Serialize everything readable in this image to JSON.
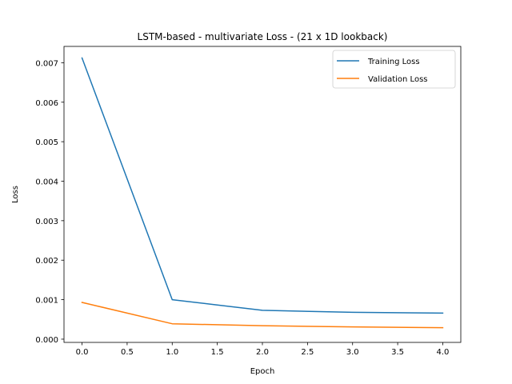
{
  "chart_data": {
    "type": "line",
    "title": "LSTM-based - multivariate Loss - (21 x 1D lookback)",
    "xlabel": "Epoch",
    "ylabel": "Loss",
    "x": [
      0,
      1,
      2,
      3,
      4
    ],
    "xlim": [
      -0.2,
      4.2
    ],
    "ylim": [
      -8.2e-05,
      0.007413
    ],
    "xticks": [
      0.0,
      0.5,
      1.0,
      1.5,
      2.0,
      2.5,
      3.0,
      3.5,
      4.0
    ],
    "xtick_labels": [
      "0.0",
      "0.5",
      "1.0",
      "1.5",
      "2.0",
      "2.5",
      "3.0",
      "3.5",
      "4.0"
    ],
    "yticks": [
      0.0,
      0.001,
      0.002,
      0.003,
      0.004,
      0.005,
      0.006,
      0.007
    ],
    "ytick_labels": [
      "0.000",
      "0.001",
      "0.002",
      "0.003",
      "0.004",
      "0.005",
      "0.006",
      "0.007"
    ],
    "grid": false,
    "legend_position": "top-right",
    "series": [
      {
        "name": "Training Loss",
        "color": "#1f77b4",
        "values": [
          0.00712,
          0.001,
          0.00073,
          0.00068,
          0.00066
        ]
      },
      {
        "name": "Validation Loss",
        "color": "#ff7f0e",
        "values": [
          0.00093,
          0.00039,
          0.00034,
          0.00031,
          0.00029
        ]
      }
    ]
  }
}
